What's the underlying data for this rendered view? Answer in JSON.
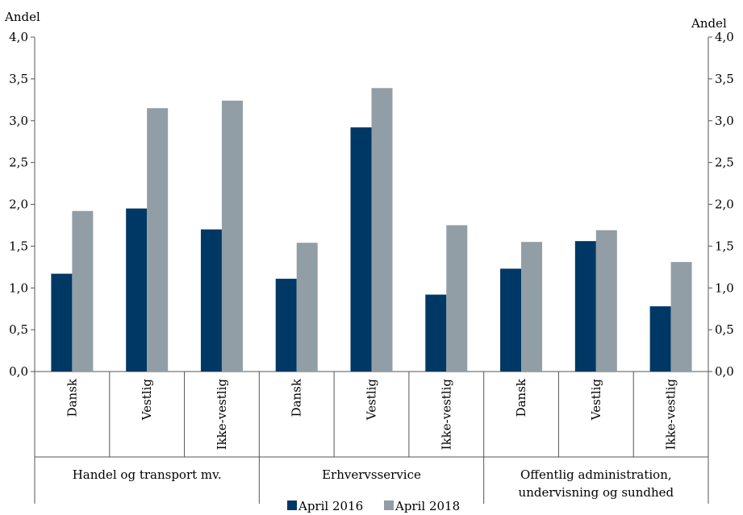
{
  "chart_data": {
    "type": "bar",
    "y_axis_label_left": "Andel",
    "y_axis_label_right": "Andel",
    "ylim": [
      0,
      4.0
    ],
    "y_ticks": [
      "0,0",
      "0,5",
      "1,0",
      "1,5",
      "2,0",
      "2,5",
      "3,0",
      "3,5",
      "4,0"
    ],
    "grid": false,
    "legend_position": "bottom",
    "groups": [
      {
        "label": "Handel og transport mv.",
        "categories": [
          "Dansk",
          "Vestlig",
          "Ikke-vestlig"
        ]
      },
      {
        "label": "Erhvervsservice",
        "categories": [
          "Dansk",
          "Vestlig",
          "Ikke-vestlig"
        ]
      },
      {
        "label": "Offentlig administration, undervisning og sundhed",
        "label_lines": [
          "Offentlig administration,",
          "undervisning og sundhed"
        ],
        "categories": [
          "Dansk",
          "Vestlig",
          "Ikke-vestlig"
        ]
      }
    ],
    "categories": [
      "Dansk",
      "Vestlig",
      "Ikke-vestlig",
      "Dansk",
      "Vestlig",
      "Ikke-vestlig",
      "Dansk",
      "Vestlig",
      "Ikke-vestlig"
    ],
    "series": [
      {
        "name": "April 2016",
        "color": "#003865",
        "values": [
          1.17,
          1.95,
          1.7,
          1.11,
          2.92,
          0.92,
          1.23,
          1.56,
          0.78
        ]
      },
      {
        "name": "April 2018",
        "color": "#919ea6",
        "values": [
          1.92,
          3.15,
          3.24,
          1.54,
          3.39,
          1.75,
          1.55,
          1.69,
          1.31
        ]
      }
    ]
  }
}
